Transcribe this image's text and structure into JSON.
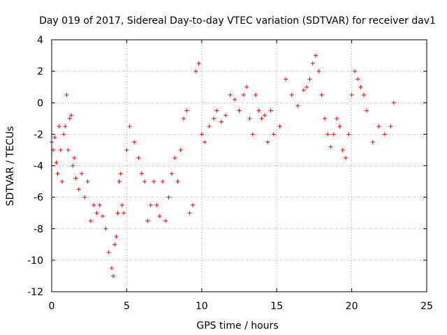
{
  "chart_data": {
    "type": "scatter",
    "title": "Day 019 of 2017, Sidereal Day-to-day VTEC variation (SDTVAR) for receiver dav1",
    "xlabel": "GPS time / hours",
    "ylabel": "SDTVAR / TECUs",
    "xlim": [
      0,
      25
    ],
    "ylim": [
      -12,
      4
    ],
    "xticks": [
      0,
      5,
      10,
      15,
      20,
      25
    ],
    "yticks": [
      -12,
      -10,
      -8,
      -6,
      -4,
      -2,
      0,
      2,
      4
    ],
    "xtick_labels": [
      "0",
      "5",
      "10",
      "15",
      "20",
      "25"
    ],
    "ytick_labels": [
      "-12",
      "-10",
      "-8",
      "-6",
      "-4",
      "-2",
      "0",
      "2",
      "4"
    ],
    "grid": true,
    "marker": "+",
    "color": "#ff0000",
    "series": [
      {
        "name": "SDTVAR",
        "x": [
          0.0,
          0.1,
          0.2,
          0.3,
          0.4,
          0.5,
          0.6,
          0.7,
          0.8,
          0.9,
          1.0,
          1.1,
          1.2,
          1.3,
          1.4,
          1.5,
          1.6,
          1.8,
          2.0,
          2.2,
          2.4,
          2.6,
          2.8,
          3.0,
          3.2,
          3.4,
          3.6,
          3.8,
          4.0,
          4.1,
          4.2,
          4.3,
          4.4,
          4.5,
          4.6,
          4.7,
          4.8,
          5.0,
          5.2,
          5.5,
          5.8,
          6.0,
          6.2,
          6.4,
          6.6,
          6.8,
          7.0,
          7.2,
          7.4,
          7.6,
          7.8,
          8.0,
          8.2,
          8.4,
          8.6,
          8.8,
          9.0,
          9.2,
          9.4,
          9.6,
          9.8,
          10.0,
          10.2,
          10.5,
          10.8,
          11.0,
          11.3,
          11.6,
          11.9,
          12.2,
          12.5,
          12.8,
          13.0,
          13.2,
          13.4,
          13.6,
          13.8,
          14.0,
          14.2,
          14.4,
          14.6,
          14.8,
          15.2,
          15.6,
          16.0,
          16.4,
          16.8,
          17.0,
          17.2,
          17.4,
          17.6,
          17.8,
          18.0,
          18.2,
          18.4,
          18.6,
          18.8,
          19.0,
          19.2,
          19.4,
          19.6,
          19.8,
          20.0,
          20.2,
          20.4,
          20.6,
          20.8,
          21.0,
          21.4,
          21.8,
          22.2,
          22.6,
          22.8
        ],
        "y": [
          -2.5,
          -3.0,
          -2.2,
          -3.8,
          -4.5,
          -1.5,
          -3.0,
          -5.0,
          -2.0,
          -1.5,
          0.5,
          -3.0,
          -1.0,
          -0.8,
          -4.0,
          -3.5,
          -4.8,
          -5.5,
          -4.5,
          -6.0,
          -5.0,
          -7.5,
          -6.5,
          -7.0,
          -6.5,
          -7.2,
          -8.0,
          -9.5,
          -10.5,
          -11.0,
          -9.0,
          -8.5,
          -7.0,
          -5.0,
          -4.5,
          -6.5,
          -7.0,
          -3.0,
          -1.5,
          -2.5,
          -3.5,
          -4.5,
          -5.0,
          -7.5,
          -6.5,
          -5.0,
          -6.5,
          -7.2,
          -5.0,
          -7.5,
          -6.0,
          -4.5,
          -3.5,
          -5.0,
          -3.0,
          -1.0,
          -0.5,
          -7.0,
          -6.5,
          2.0,
          2.5,
          -2.0,
          -2.5,
          -1.5,
          -1.0,
          -0.5,
          -1.2,
          -0.8,
          0.5,
          0.2,
          -0.5,
          0.5,
          1.0,
          -1.0,
          -2.0,
          0.5,
          -0.5,
          -1.0,
          -0.8,
          -2.5,
          -0.5,
          -2.0,
          -1.5,
          1.5,
          0.5,
          -0.2,
          0.8,
          1.0,
          1.5,
          2.5,
          3.0,
          2.0,
          0.5,
          -1.0,
          -2.0,
          -2.8,
          -2.0,
          -1.0,
          -1.5,
          -3.0,
          -3.5,
          -2.0,
          0.5,
          2.0,
          1.5,
          1.0,
          0.5,
          -0.5,
          -2.5,
          -1.5,
          -2.0,
          -1.5,
          0.0
        ]
      }
    ]
  }
}
